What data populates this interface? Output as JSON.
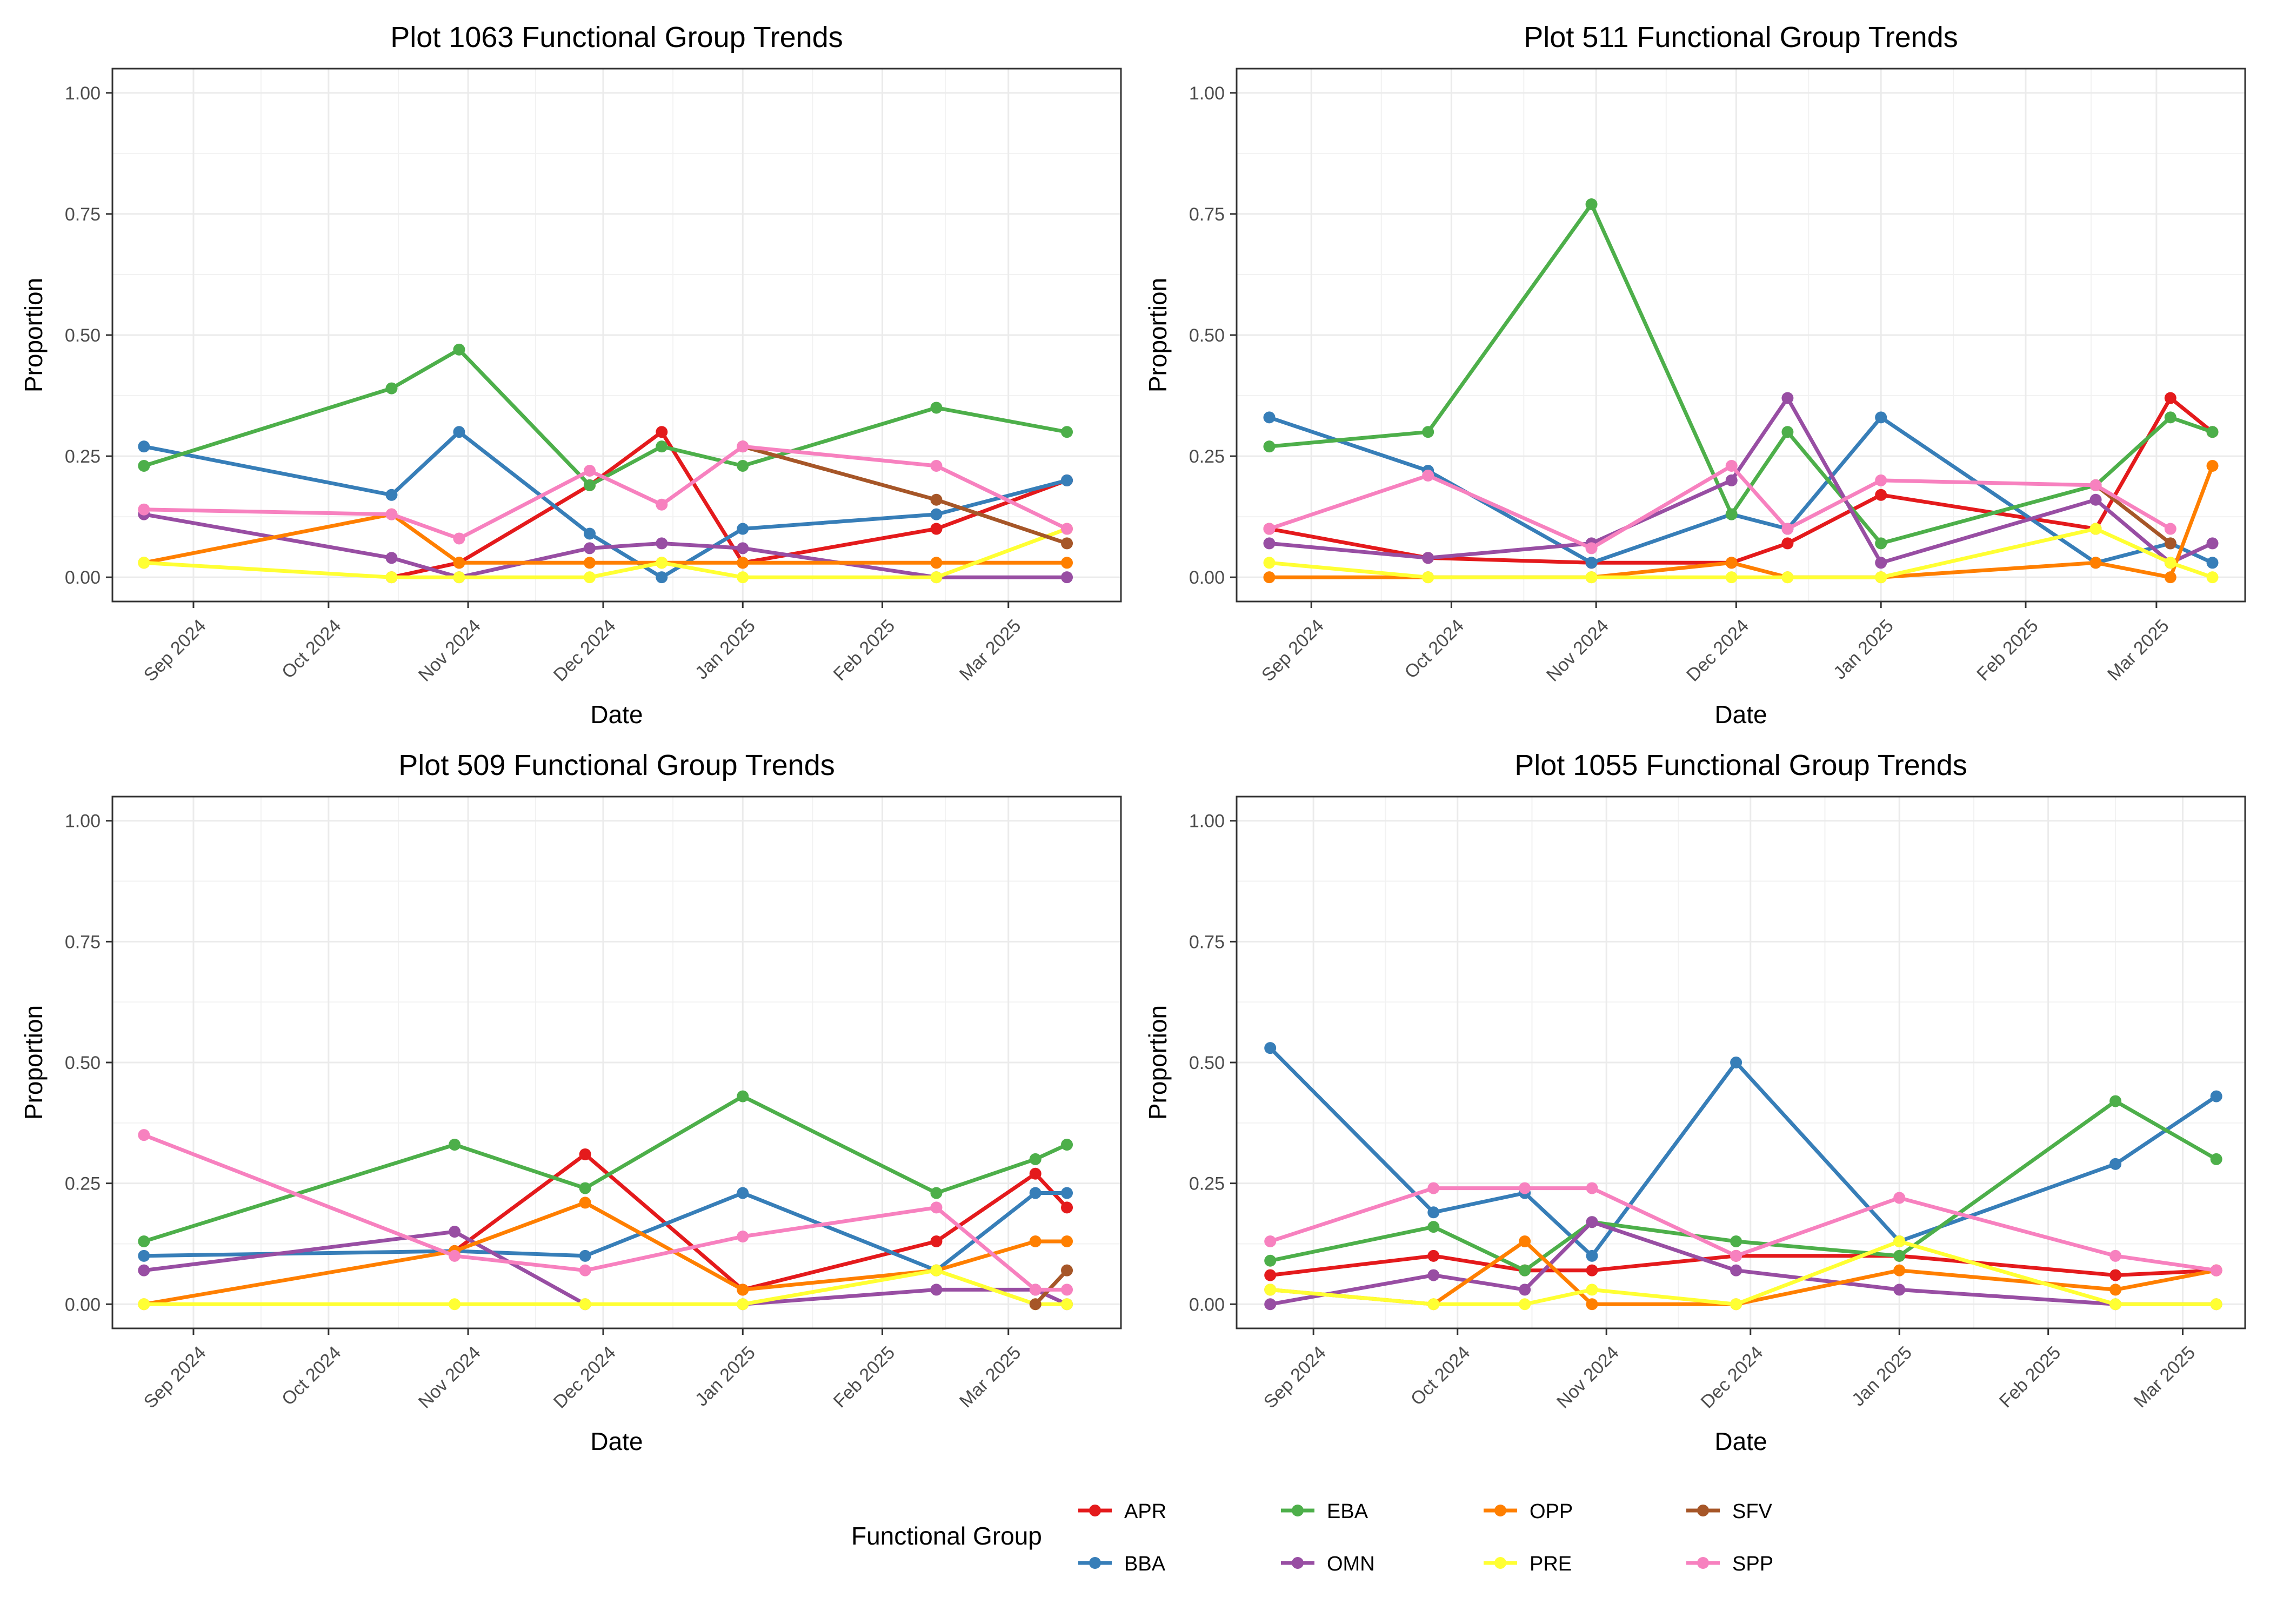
{
  "legend": {
    "title": "Functional Group",
    "position": "bottom",
    "groups": [
      "APR",
      "BBA",
      "EBA",
      "OMN",
      "OPP",
      "PRE",
      "SFV",
      "SPP"
    ],
    "colors": {
      "APR": "#E41A1C",
      "BBA": "#377EB8",
      "EBA": "#4DAF4A",
      "OMN": "#984EA3",
      "OPP": "#FF7F00",
      "PRE": "#FFFF33",
      "SFV": "#A65628",
      "SPP": "#F781BF"
    }
  },
  "chart_data": [
    {
      "type": "line",
      "title": "Plot 1063 Functional Group Trends",
      "xlabel": "Date",
      "ylabel": "Proportion",
      "xlim": [
        "2024-08-14",
        "2025-03-26"
      ],
      "ylim": [
        -0.05,
        1.05
      ],
      "y_ticks": [
        0,
        0.25,
        0.5,
        0.75,
        1
      ],
      "y_tick_labels": [
        "0.00",
        "0.25",
        "0.50",
        "0.75",
        "1.00"
      ],
      "x_ticks": [
        "2024-09-01",
        "2024-10-01",
        "2024-11-01",
        "2024-12-01",
        "2025-01-01",
        "2025-02-01",
        "2025-03-01"
      ],
      "x_tick_labels": [
        "Sep 2024",
        "Oct 2024",
        "Nov 2024",
        "Dec 2024",
        "Jan 2025",
        "Feb 2025",
        "Mar 2025"
      ],
      "grid": true,
      "series": [
        {
          "name": "APR",
          "x": [
            "2024-10-15",
            "2024-10-30",
            "2024-11-28",
            "2024-12-14",
            "2025-01-01",
            "2025-02-13",
            "2025-03-14"
          ],
          "y": [
            0,
            0.03,
            0.19,
            0.3,
            0.03,
            0.1,
            0.2
          ]
        },
        {
          "name": "BBA",
          "x": [
            "2024-08-21",
            "2024-10-15",
            "2024-10-30",
            "2024-11-28",
            "2024-12-14",
            "2025-01-01",
            "2025-02-13",
            "2025-03-14"
          ],
          "y": [
            0.27,
            0.17,
            0.3,
            0.09,
            0,
            0.1,
            0.13,
            0.2
          ]
        },
        {
          "name": "EBA",
          "x": [
            "2024-08-21",
            "2024-10-15",
            "2024-10-30",
            "2024-11-28",
            "2024-12-14",
            "2025-01-01",
            "2025-02-13",
            "2025-03-14"
          ],
          "y": [
            0.23,
            0.39,
            0.47,
            0.19,
            0.27,
            0.23,
            0.35,
            0.3
          ]
        },
        {
          "name": "OMN",
          "x": [
            "2024-08-21",
            "2024-10-15",
            "2024-10-30",
            "2024-11-28",
            "2024-12-14",
            "2025-01-01",
            "2025-02-13",
            "2025-03-14"
          ],
          "y": [
            0.13,
            0.04,
            0,
            0.06,
            0.07,
            0.06,
            0,
            0
          ]
        },
        {
          "name": "OPP",
          "x": [
            "2024-08-21",
            "2024-10-15",
            "2024-10-30",
            "2024-11-28",
            "2024-12-14",
            "2025-01-01",
            "2025-02-13",
            "2025-03-14"
          ],
          "y": [
            0.03,
            0.13,
            0.03,
            0.03,
            0.03,
            0.03,
            0.03,
            0.03
          ]
        },
        {
          "name": "PRE",
          "x": [
            "2024-08-21",
            "2024-10-15",
            "2024-10-30",
            "2024-11-28",
            "2024-12-14",
            "2025-01-01",
            "2025-02-13",
            "2025-03-14"
          ],
          "y": [
            0.03,
            0,
            0,
            0,
            0.03,
            0,
            0,
            0.1
          ]
        },
        {
          "name": "SFV",
          "x": [
            "2025-01-01",
            "2025-02-13",
            "2025-03-14"
          ],
          "y": [
            0.27,
            0.16,
            0.07
          ]
        },
        {
          "name": "SPP",
          "x": [
            "2024-08-21",
            "2024-10-15",
            "2024-10-30",
            "2024-11-28",
            "2024-12-14",
            "2025-01-01",
            "2025-02-13",
            "2025-03-14"
          ],
          "y": [
            0.14,
            0.13,
            0.08,
            0.22,
            0.15,
            0.27,
            0.23,
            0.1
          ]
        }
      ]
    },
    {
      "type": "line",
      "title": "Plot 511 Functional Group Trends",
      "xlabel": "Date",
      "ylabel": "Proportion",
      "xlim": [
        "2024-08-16",
        "2025-03-20"
      ],
      "ylim": [
        -0.05,
        1.05
      ],
      "y_ticks": [
        0,
        0.25,
        0.5,
        0.75,
        1
      ],
      "y_tick_labels": [
        "0.00",
        "0.25",
        "0.50",
        "0.75",
        "1.00"
      ],
      "x_ticks": [
        "2024-09-01",
        "2024-10-01",
        "2024-11-01",
        "2024-12-01",
        "2025-01-01",
        "2025-02-01",
        "2025-03-01"
      ],
      "x_tick_labels": [
        "Sep 2024",
        "Oct 2024",
        "Nov 2024",
        "Dec 2024",
        "Jan 2025",
        "Feb 2025",
        "Mar 2025"
      ],
      "grid": true,
      "series": [
        {
          "name": "APR",
          "x": [
            "2024-08-23",
            "2024-09-26",
            "2024-10-31",
            "2024-11-30",
            "2024-12-12",
            "2025-01-01",
            "2025-02-16",
            "2025-03-04",
            "2025-03-13"
          ],
          "y": [
            0.1,
            0.04,
            0.03,
            0.03,
            0.07,
            0.17,
            0.1,
            0.37,
            0.3
          ]
        },
        {
          "name": "BBA",
          "x": [
            "2024-08-23",
            "2024-09-26",
            "2024-10-31",
            "2024-11-30",
            "2024-12-12",
            "2025-01-01",
            "2025-02-16",
            "2025-03-04",
            "2025-03-13"
          ],
          "y": [
            0.33,
            0.22,
            0.03,
            0.13,
            0.1,
            0.33,
            0.03,
            0.07,
            0.03
          ]
        },
        {
          "name": "EBA",
          "x": [
            "2024-08-23",
            "2024-09-26",
            "2024-10-31",
            "2024-11-30",
            "2024-12-12",
            "2025-01-01",
            "2025-02-16",
            "2025-03-04",
            "2025-03-13"
          ],
          "y": [
            0.27,
            0.3,
            0.77,
            0.13,
            0.3,
            0.07,
            0.19,
            0.33,
            0.3
          ]
        },
        {
          "name": "OMN",
          "x": [
            "2024-08-23",
            "2024-09-26",
            "2024-10-31",
            "2024-11-30",
            "2024-12-12",
            "2025-01-01",
            "2025-02-16",
            "2025-03-04",
            "2025-03-13"
          ],
          "y": [
            0.07,
            0.04,
            0.07,
            0.2,
            0.37,
            0.03,
            0.16,
            0.03,
            0.07
          ]
        },
        {
          "name": "OPP",
          "x": [
            "2024-08-23",
            "2024-09-26",
            "2024-10-31",
            "2024-11-30",
            "2024-12-12",
            "2025-01-01",
            "2025-02-16",
            "2025-03-04",
            "2025-03-13"
          ],
          "y": [
            0,
            0,
            0,
            0.03,
            0,
            0,
            0.03,
            0,
            0.23
          ]
        },
        {
          "name": "PRE",
          "x": [
            "2024-08-23",
            "2024-09-26",
            "2024-10-31",
            "2024-11-30",
            "2024-12-12",
            "2025-01-01",
            "2025-02-16",
            "2025-03-04",
            "2025-03-13"
          ],
          "y": [
            0.03,
            0,
            0,
            0,
            0,
            0,
            0.1,
            0.03,
            0
          ]
        },
        {
          "name": "SFV",
          "x": [
            "2025-02-16",
            "2025-03-04"
          ],
          "y": [
            0.19,
            0.07
          ]
        },
        {
          "name": "SPP",
          "x": [
            "2024-08-23",
            "2024-09-26",
            "2024-10-31",
            "2024-11-30",
            "2024-12-12",
            "2025-01-01",
            "2025-02-16",
            "2025-03-04"
          ],
          "y": [
            0.1,
            0.21,
            0.06,
            0.23,
            0.1,
            0.2,
            0.19,
            0.1
          ]
        }
      ]
    },
    {
      "type": "line",
      "title": "Plot 509 Functional Group Trends",
      "xlabel": "Date",
      "ylabel": "Proportion",
      "xlim": [
        "2024-08-14",
        "2025-03-26"
      ],
      "ylim": [
        -0.05,
        1.05
      ],
      "y_ticks": [
        0,
        0.25,
        0.5,
        0.75,
        1
      ],
      "y_tick_labels": [
        "0.00",
        "0.25",
        "0.50",
        "0.75",
        "1.00"
      ],
      "x_ticks": [
        "2024-09-01",
        "2024-10-01",
        "2024-11-01",
        "2024-12-01",
        "2025-01-01",
        "2025-02-01",
        "2025-03-01"
      ],
      "x_tick_labels": [
        "Sep 2024",
        "Oct 2024",
        "Nov 2024",
        "Dec 2024",
        "Jan 2025",
        "Feb 2025",
        "Mar 2025"
      ],
      "grid": true,
      "series": [
        {
          "name": "APR",
          "x": [
            "2024-10-29",
            "2024-11-27",
            "2025-01-01",
            "2025-02-13",
            "2025-03-07",
            "2025-03-14"
          ],
          "y": [
            0.11,
            0.31,
            0.03,
            0.13,
            0.27,
            0.2
          ]
        },
        {
          "name": "BBA",
          "x": [
            "2024-08-21",
            "2024-10-29",
            "2024-11-27",
            "2025-01-01",
            "2025-02-13",
            "2025-03-07",
            "2025-03-14"
          ],
          "y": [
            0.1,
            0.11,
            0.1,
            0.23,
            0.07,
            0.23,
            0.23
          ]
        },
        {
          "name": "EBA",
          "x": [
            "2024-08-21",
            "2024-10-29",
            "2024-11-27",
            "2025-01-01",
            "2025-02-13",
            "2025-03-07",
            "2025-03-14"
          ],
          "y": [
            0.13,
            0.33,
            0.24,
            0.43,
            0.23,
            0.3,
            0.33
          ]
        },
        {
          "name": "OMN",
          "x": [
            "2024-08-21",
            "2024-10-29",
            "2024-11-27"
          ],
          "y": [
            0.07,
            0.15,
            0
          ]
        },
        {
          "name": "OMN",
          "x": [
            "2025-01-01",
            "2025-02-13",
            "2025-03-07",
            "2025-03-14"
          ],
          "y": [
            0,
            0.03,
            0.03,
            0
          ]
        },
        {
          "name": "OPP",
          "x": [
            "2024-08-21",
            "2024-10-29",
            "2024-11-27",
            "2025-01-01",
            "2025-02-13",
            "2025-03-07",
            "2025-03-14"
          ],
          "y": [
            0,
            0.11,
            0.21,
            0.03,
            0.07,
            0.13,
            0.13
          ]
        },
        {
          "name": "PRE",
          "x": [
            "2024-08-21",
            "2024-10-29",
            "2024-11-27",
            "2025-01-01",
            "2025-02-13",
            "2025-03-07",
            "2025-03-14"
          ],
          "y": [
            0,
            0,
            0,
            0,
            0.07,
            0,
            0
          ]
        },
        {
          "name": "SFV",
          "x": [
            "2025-03-07",
            "2025-03-14"
          ],
          "y": [
            0,
            0.07
          ]
        },
        {
          "name": "SPP",
          "x": [
            "2024-08-21",
            "2024-10-29",
            "2024-11-27",
            "2025-01-01",
            "2025-02-13",
            "2025-03-07",
            "2025-03-14"
          ],
          "y": [
            0.35,
            0.1,
            0.07,
            0.14,
            0.2,
            0.03,
            0.03
          ]
        }
      ]
    },
    {
      "type": "line",
      "title": "Plot 1055 Functional Group Trends",
      "xlabel": "Date",
      "ylabel": "Proportion",
      "xlim": [
        "2024-08-16",
        "2025-03-14"
      ],
      "ylim": [
        -0.05,
        1.05
      ],
      "y_ticks": [
        0,
        0.25,
        0.5,
        0.75,
        1
      ],
      "y_tick_labels": [
        "0.00",
        "0.25",
        "0.50",
        "0.75",
        "1.00"
      ],
      "x_ticks": [
        "2024-09-01",
        "2024-10-01",
        "2024-11-01",
        "2024-12-01",
        "2025-01-01",
        "2025-02-01",
        "2025-03-01"
      ],
      "x_tick_labels": [
        "Sep 2024",
        "Oct 2024",
        "Nov 2024",
        "Dec 2024",
        "Jan 2025",
        "Feb 2025",
        "Mar 2025"
      ],
      "grid": true,
      "series": [
        {
          "name": "APR",
          "x": [
            "2024-08-23",
            "2024-09-26",
            "2024-10-15",
            "2024-10-29",
            "2024-11-28",
            "2025-01-01",
            "2025-02-15",
            "2025-03-08"
          ],
          "y": [
            0.06,
            0.1,
            0.07,
            0.07,
            0.1,
            0.1,
            0.06,
            0.07
          ]
        },
        {
          "name": "BBA",
          "x": [
            "2024-08-23",
            "2024-09-26",
            "2024-10-15",
            "2024-10-29",
            "2024-11-28",
            "2025-01-01",
            "2025-02-15",
            "2025-03-08"
          ],
          "y": [
            0.53,
            0.19,
            0.23,
            0.1,
            0.5,
            0.13,
            0.29,
            0.43
          ]
        },
        {
          "name": "EBA",
          "x": [
            "2024-08-23",
            "2024-09-26",
            "2024-10-15",
            "2024-10-29",
            "2024-11-28",
            "2025-01-01",
            "2025-02-15",
            "2025-03-08"
          ],
          "y": [
            0.09,
            0.16,
            0.07,
            0.17,
            0.13,
            0.1,
            0.42,
            0.3
          ]
        },
        {
          "name": "OMN",
          "x": [
            "2024-08-23",
            "2024-09-26",
            "2024-10-15",
            "2024-10-29",
            "2024-11-28",
            "2025-01-01",
            "2025-02-15",
            "2025-03-08"
          ],
          "y": [
            0,
            0.06,
            0.03,
            0.17,
            0.07,
            0.03,
            0,
            0
          ]
        },
        {
          "name": "OPP",
          "x": [
            "2024-08-23",
            "2024-09-26",
            "2024-10-15",
            "2024-10-29",
            "2024-11-28",
            "2025-01-01",
            "2025-02-15",
            "2025-03-08"
          ],
          "y": [
            0.03,
            0,
            0.13,
            0,
            0,
            0.07,
            0.03,
            0.07
          ]
        },
        {
          "name": "PRE",
          "x": [
            "2024-08-23",
            "2024-09-26",
            "2024-10-15",
            "2024-10-29",
            "2024-11-28",
            "2025-01-01",
            "2025-02-15",
            "2025-03-08"
          ],
          "y": [
            0.03,
            0,
            0,
            0.03,
            0,
            0.13,
            0,
            0
          ]
        },
        {
          "name": "SPP",
          "x": [
            "2024-08-23",
            "2024-09-26",
            "2024-10-15",
            "2024-10-29",
            "2024-11-28",
            "2025-01-01",
            "2025-02-15",
            "2025-03-08"
          ],
          "y": [
            0.13,
            0.24,
            0.24,
            0.24,
            0.1,
            0.22,
            0.1,
            0.07
          ]
        }
      ]
    }
  ]
}
